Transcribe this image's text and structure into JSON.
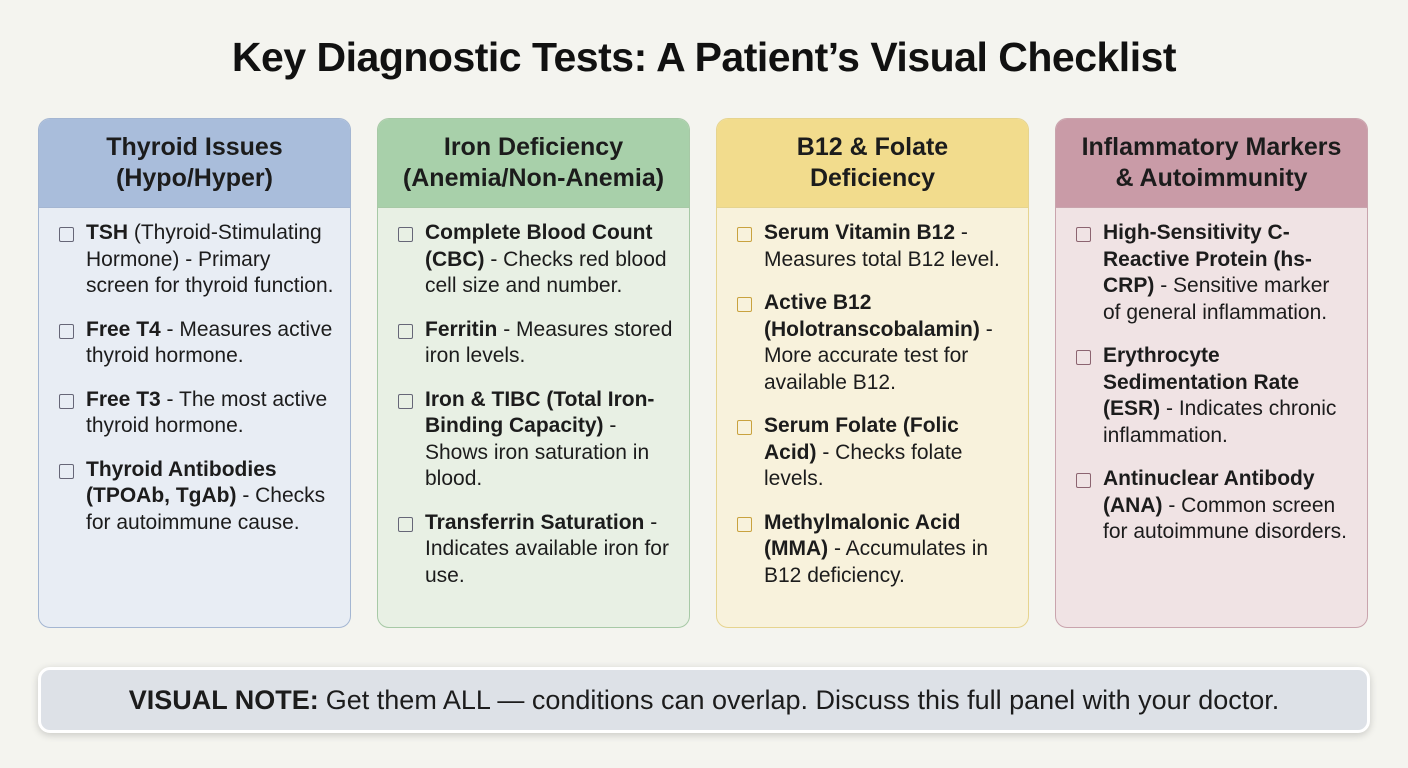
{
  "title": "Key Diagnostic Tests: A Patient’s Visual Checklist",
  "columns": [
    {
      "header": [
        "Thyroid Issues",
        "(Hypo/Hyper)"
      ],
      "items": [
        {
          "name": "TSH",
          "desc": "(Thyroid-Stimulating Hormone) - Primary screen for thyroid function."
        },
        {
          "name": "Free T4",
          "desc": "- Measures active thyroid hormone."
        },
        {
          "name": "Free T3",
          "desc": "- The most active thyroid hormone."
        },
        {
          "name": "Thyroid Antibodies (TPOAb, TgAb)",
          "desc": "- Checks for autoimmune cause."
        }
      ]
    },
    {
      "header": [
        "Iron Deficiency",
        "(Anemia/Non-Anemia)"
      ],
      "items": [
        {
          "name": "Complete Blood Count (CBC)",
          "desc": "- Checks red blood cell size and number."
        },
        {
          "name": "Ferritin",
          "desc": "- Measures stored iron levels."
        },
        {
          "name": "Iron & TIBC (Total Iron-Binding Capacity)",
          "desc": "- Shows iron saturation in blood."
        },
        {
          "name": "Transferrin Saturation",
          "desc": "- Indicates available iron for use."
        }
      ]
    },
    {
      "header": [
        "B12 & Folate",
        "Deficiency"
      ],
      "items": [
        {
          "name": "Serum Vitamin B12",
          "desc": "- Measures total B12 level."
        },
        {
          "name": "Active B12 (Holotranscobalamin)",
          "desc": "- More accurate test for available B12."
        },
        {
          "name": "Serum Folate (Folic Acid)",
          "desc": "- Checks folate levels."
        },
        {
          "name": "Methylmalonic Acid (MMA)",
          "desc": "- Accumulates in B12 deficiency."
        }
      ]
    },
    {
      "header": [
        "Inflammatory Markers",
        "& Autoimmunity"
      ],
      "items": [
        {
          "name": "High-Sensitivity C-Reactive Protein (hs-CRP)",
          "desc": "- Sensitive marker of general inflammation."
        },
        {
          "name": "Erythrocyte Sedimentation Rate (ESR)",
          "desc": "- Indicates chronic inflammation."
        },
        {
          "name": "Antinuclear Antibody (ANA)",
          "desc": "- Common screen for autoimmune disorders."
        }
      ]
    }
  ],
  "note": {
    "label": "VISUAL NOTE:",
    "text": "Get them ALL — conditions can overlap. Discuss this full panel with your doctor."
  }
}
